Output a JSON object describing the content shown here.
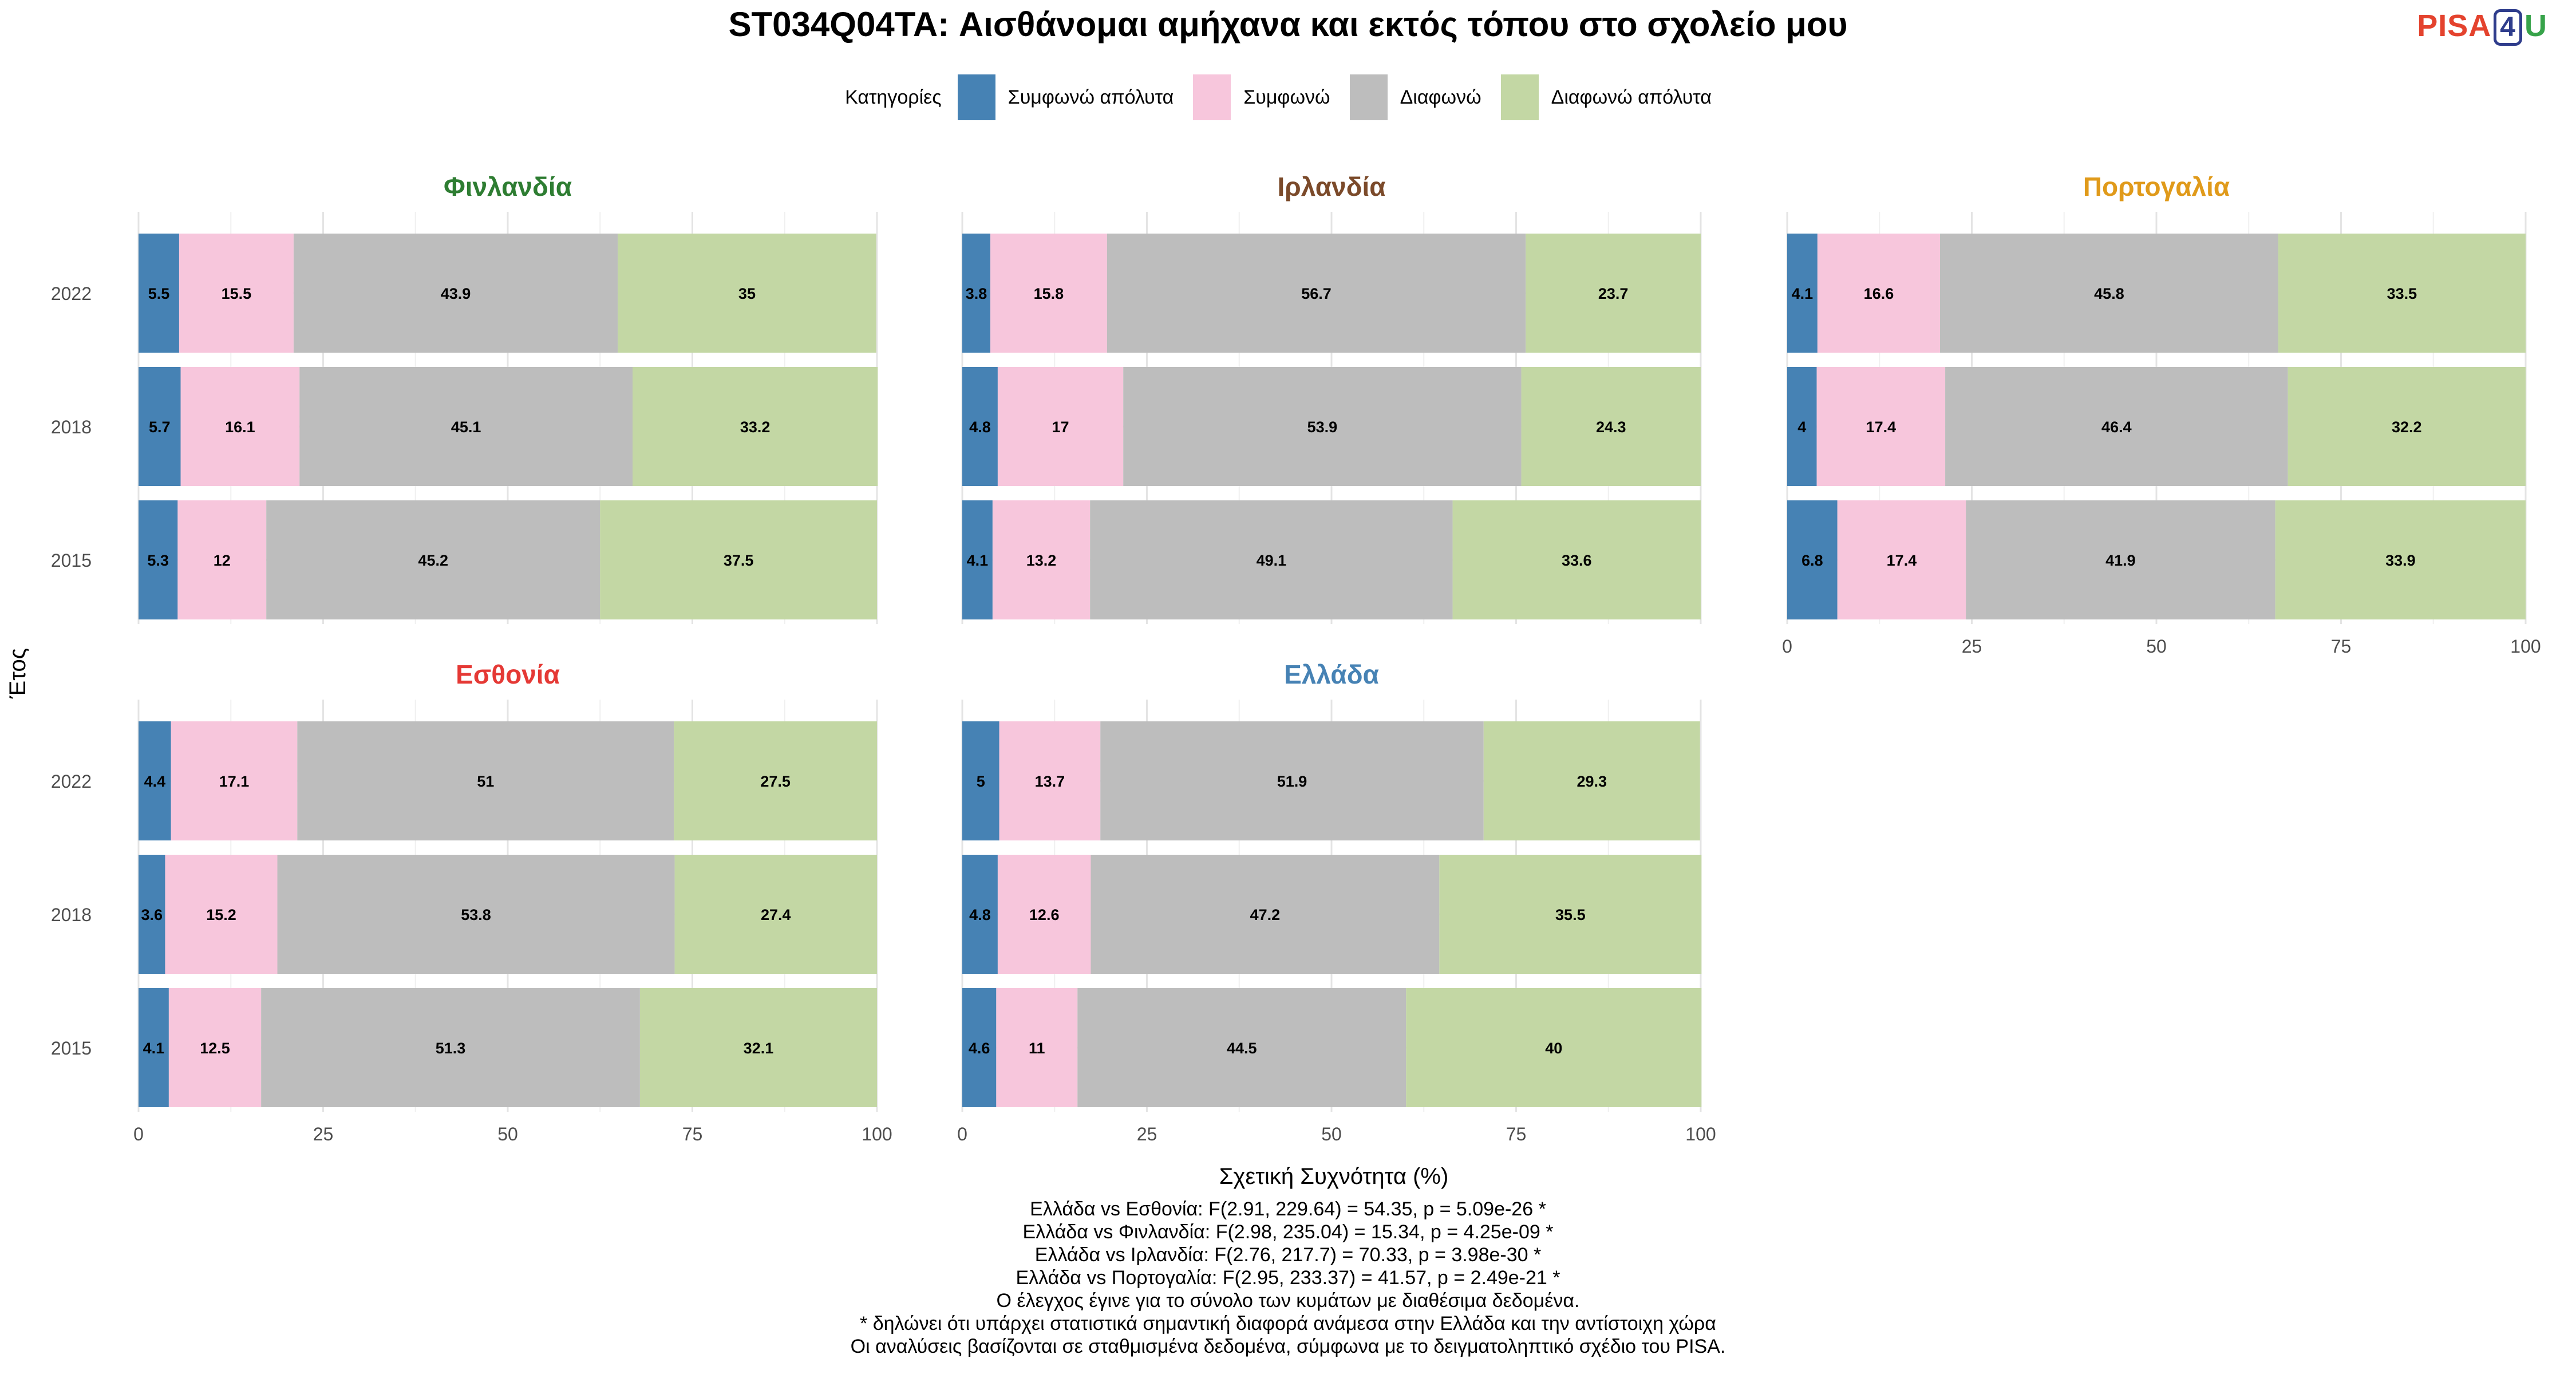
{
  "title": "ST034Q04TA: Αισθάνομαι αμήχανα και εκτός τόπου στο σχολείο μου",
  "logo": {
    "pisa": "PISA",
    "four": "4",
    "u": "U"
  },
  "legend": {
    "title": "Κατηγορίες",
    "items": [
      {
        "label": "Συμφωνώ απόλυτα",
        "color": "#4682b4"
      },
      {
        "label": "Συμφωνώ",
        "color": "#f7c6dc"
      },
      {
        "label": "Διαφωνώ",
        "color": "#bdbdbd"
      },
      {
        "label": "Διαφωνώ απόλυτα",
        "color": "#c3d7a4"
      }
    ]
  },
  "chart_data": {
    "type": "bar",
    "orientation": "horizontal",
    "stacked": true,
    "xlabel": "Σχετική Συχνότητα (%)",
    "ylabel": "Έτος",
    "xlim": [
      0,
      100
    ],
    "x_ticks": [
      "0",
      "25",
      "50",
      "75",
      "100"
    ],
    "categories": [
      "2015",
      "2018",
      "2022"
    ],
    "series_names": [
      "Συμφωνώ απόλυτα",
      "Συμφωνώ",
      "Διαφωνώ",
      "Διαφωνώ απόλυτα"
    ],
    "colors": [
      "#4682b4",
      "#f7c6dc",
      "#bdbdbd",
      "#c3d7a4"
    ],
    "grid": true,
    "legend_position": "top",
    "panels": [
      {
        "country": "Φινλανδία",
        "title_color": "#2e7d32",
        "values": {
          "2022": [
            5.5,
            15.5,
            43.9,
            35
          ],
          "2018": [
            5.7,
            16.1,
            45.1,
            33.2
          ],
          "2015": [
            5.3,
            12,
            45.2,
            37.5
          ]
        }
      },
      {
        "country": "Ιρλανδία",
        "title_color": "#7b4a2a",
        "values": {
          "2022": [
            3.8,
            15.8,
            56.7,
            23.7
          ],
          "2018": [
            4.8,
            17,
            53.9,
            24.3
          ],
          "2015": [
            4.1,
            13.2,
            49.1,
            33.6
          ]
        }
      },
      {
        "country": "Πορτογαλία",
        "title_color": "#e09a1a",
        "values": {
          "2022": [
            4.1,
            16.6,
            45.8,
            33.5
          ],
          "2018": [
            4,
            17.4,
            46.4,
            32.2
          ],
          "2015": [
            6.8,
            17.4,
            41.9,
            33.9
          ]
        }
      },
      {
        "country": "Εσθονία",
        "title_color": "#e53935",
        "values": {
          "2022": [
            4.4,
            17.1,
            51,
            27.5
          ],
          "2018": [
            3.6,
            15.2,
            53.8,
            27.4
          ],
          "2015": [
            4.1,
            12.5,
            51.3,
            32.1
          ]
        }
      },
      {
        "country": "Ελλάδα",
        "title_color": "#4682b4",
        "values": {
          "2022": [
            5,
            13.7,
            51.9,
            29.3
          ],
          "2018": [
            4.8,
            12.6,
            47.2,
            35.5
          ],
          "2015": [
            4.6,
            11,
            44.5,
            40
          ]
        }
      }
    ]
  },
  "footer": [
    "Ελλάδα vs Εσθονία: F(2.91, 229.64) = 54.35, p = 5.09e-26 *",
    "Ελλάδα vs Φινλανδία: F(2.98, 235.04) = 15.34, p = 4.25e-09 *",
    "Ελλάδα vs Ιρλανδία: F(2.76, 217.7) = 70.33, p = 3.98e-30 *",
    "Ελλάδα vs Πορτογαλία: F(2.95, 233.37) = 41.57, p = 2.49e-21 *",
    "Ο έλεγχος έγινε για το σύνολο των κυμάτων με διαθέσιμα δεδομένα.",
    "* δηλώνει ότι υπάρχει στατιστικά σημαντική διαφορά ανάμεσα στην Ελλάδα και την αντίστοιχη χώρα",
    "Οι αναλύσεις βασίζονται σε σταθμισμένα δεδομένα, σύμφωνα με το δειγματοληπτικό σχέδιο του PISA."
  ]
}
